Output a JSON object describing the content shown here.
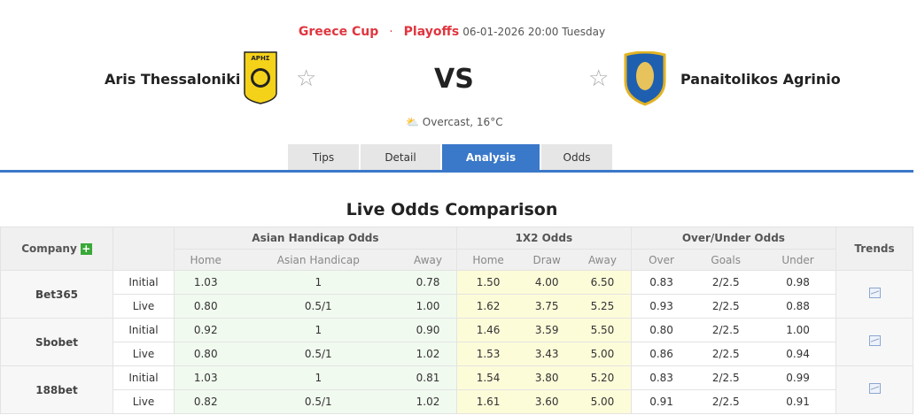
{
  "header": {
    "league": "Greece Cup",
    "separator": "·",
    "round": "Playoffs",
    "datetime": "06-01-2026 20:00 Tuesday",
    "home_team": "Aris Thessaloniki",
    "away_team": "Panaitolikos Agrinio",
    "vs": "VS",
    "weather": "Overcast, 16°C",
    "home_logo_text": "ΑΡΗΣ"
  },
  "tabs": [
    {
      "label": "Tips"
    },
    {
      "label": "Detail"
    },
    {
      "label": "Analysis",
      "active": true
    },
    {
      "label": "Odds"
    }
  ],
  "section_title": "Live Odds Comparison",
  "table": {
    "headers": {
      "company": "Company",
      "ah": "Asian Handicap Odds",
      "x12": "1X2 Odds",
      "ou": "Over/Under Odds",
      "trends": "Trends"
    },
    "subheaders": {
      "ah": [
        "Home",
        "Asian Handicap",
        "Away"
      ],
      "x12": [
        "Home",
        "Draw",
        "Away"
      ],
      "ou": [
        "Over",
        "Goals",
        "Under"
      ]
    },
    "rows": [
      {
        "company": "Bet365",
        "initial": {
          "label": "Initial",
          "ah": [
            "1.03",
            "1",
            "0.78"
          ],
          "x12": [
            "1.50",
            "4.00",
            "6.50"
          ],
          "ou": [
            "0.83",
            "2/2.5",
            "0.98"
          ]
        },
        "live": {
          "label": "Live",
          "ah": [
            "0.80",
            "0.5/1",
            "1.00"
          ],
          "x12": [
            "1.62",
            "3.75",
            "5.25"
          ],
          "ou": [
            "0.93",
            "2/2.5",
            "0.88"
          ]
        }
      },
      {
        "company": "Sbobet",
        "initial": {
          "label": "Initial",
          "ah": [
            "0.92",
            "1",
            "0.90"
          ],
          "x12": [
            "1.46",
            "3.59",
            "5.50"
          ],
          "ou": [
            "0.80",
            "2/2.5",
            "1.00"
          ]
        },
        "live": {
          "label": "Live",
          "ah": [
            "0.80",
            "0.5/1",
            "1.02"
          ],
          "x12": [
            "1.53",
            "3.43",
            "5.00"
          ],
          "ou": [
            "0.86",
            "2/2.5",
            "0.94"
          ]
        }
      },
      {
        "company": "188bet",
        "initial": {
          "label": "Initial",
          "ah": [
            "1.03",
            "1",
            "0.81"
          ],
          "x12": [
            "1.54",
            "3.80",
            "5.20"
          ],
          "ou": [
            "0.83",
            "2/2.5",
            "0.99"
          ]
        },
        "live": {
          "label": "Live",
          "ah": [
            "0.82",
            "0.5/1",
            "1.02"
          ],
          "x12": [
            "1.61",
            "3.60",
            "5.00"
          ],
          "ou": [
            "0.91",
            "2/2.5",
            "0.91"
          ]
        }
      }
    ]
  },
  "colors": {
    "accent": "#3a78c9",
    "league": "#e0363f",
    "ah_bg": "#f1faef",
    "x12_bg": "#fdfcd9"
  }
}
